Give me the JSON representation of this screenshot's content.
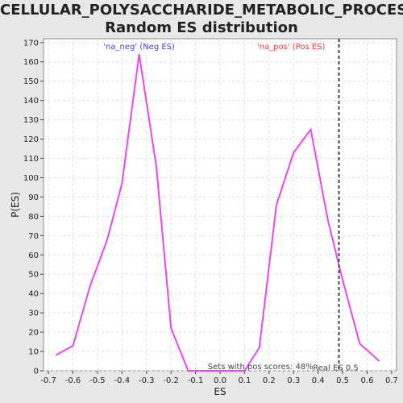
{
  "chart_data": {
    "type": "line",
    "title": "CELLULAR_POLYSACCHARIDE_METABOLIC_PROCESS:",
    "subtitle": "Random ES distribution",
    "xlabel": "ES",
    "ylabel": "P(ES)",
    "xlim": [
      -0.72,
      0.72
    ],
    "ylim": [
      0,
      172
    ],
    "xticks": [
      -0.7,
      -0.6,
      -0.5,
      -0.4,
      -0.3,
      -0.2,
      -0.1,
      0.0,
      0.1,
      0.2,
      0.3,
      0.4,
      0.5,
      0.6,
      0.7
    ],
    "xtick_labels": [
      "-0.7",
      "-0.6",
      "-0.5",
      "-0.4",
      "-0.3",
      "-0.2",
      "-0.1",
      "0.0",
      "0.1",
      "0.2",
      "0.3",
      "0.4",
      "0.5",
      "0.6",
      "0.7"
    ],
    "yticks": [
      0,
      10,
      20,
      30,
      40,
      50,
      60,
      70,
      80,
      90,
      100,
      110,
      120,
      130,
      140,
      150,
      160,
      170
    ],
    "grid": true,
    "line_color": "#ee44ee",
    "series": [
      {
        "x": [
          -0.67,
          -0.6,
          -0.53,
          -0.46,
          -0.4,
          -0.33,
          -0.26,
          -0.2,
          -0.13,
          -0.07,
          0.0,
          0.1,
          0.16,
          0.23,
          0.3,
          0.37,
          0.44,
          0.5,
          0.57,
          0.65
        ],
        "y": [
          8,
          13,
          44,
          68,
          97,
          164,
          106,
          22,
          0,
          0,
          0,
          0,
          12,
          86,
          113,
          125,
          78,
          47,
          14,
          5
        ]
      }
    ],
    "real_es": {
      "x": 0.485,
      "label": "Real ES 0.5",
      "color": "#444444"
    },
    "annotations": {
      "neg": {
        "text": "'na_neg' (Neg ES)",
        "color": "#4444cc",
        "x": -0.33
      },
      "pos": {
        "text": "'na_pos' (Pos ES)",
        "color": "#dd4444",
        "x": 0.29
      },
      "sets": {
        "text": "Sets with pos scores: 48%",
        "color": "#444444",
        "x": -0.05
      }
    }
  }
}
